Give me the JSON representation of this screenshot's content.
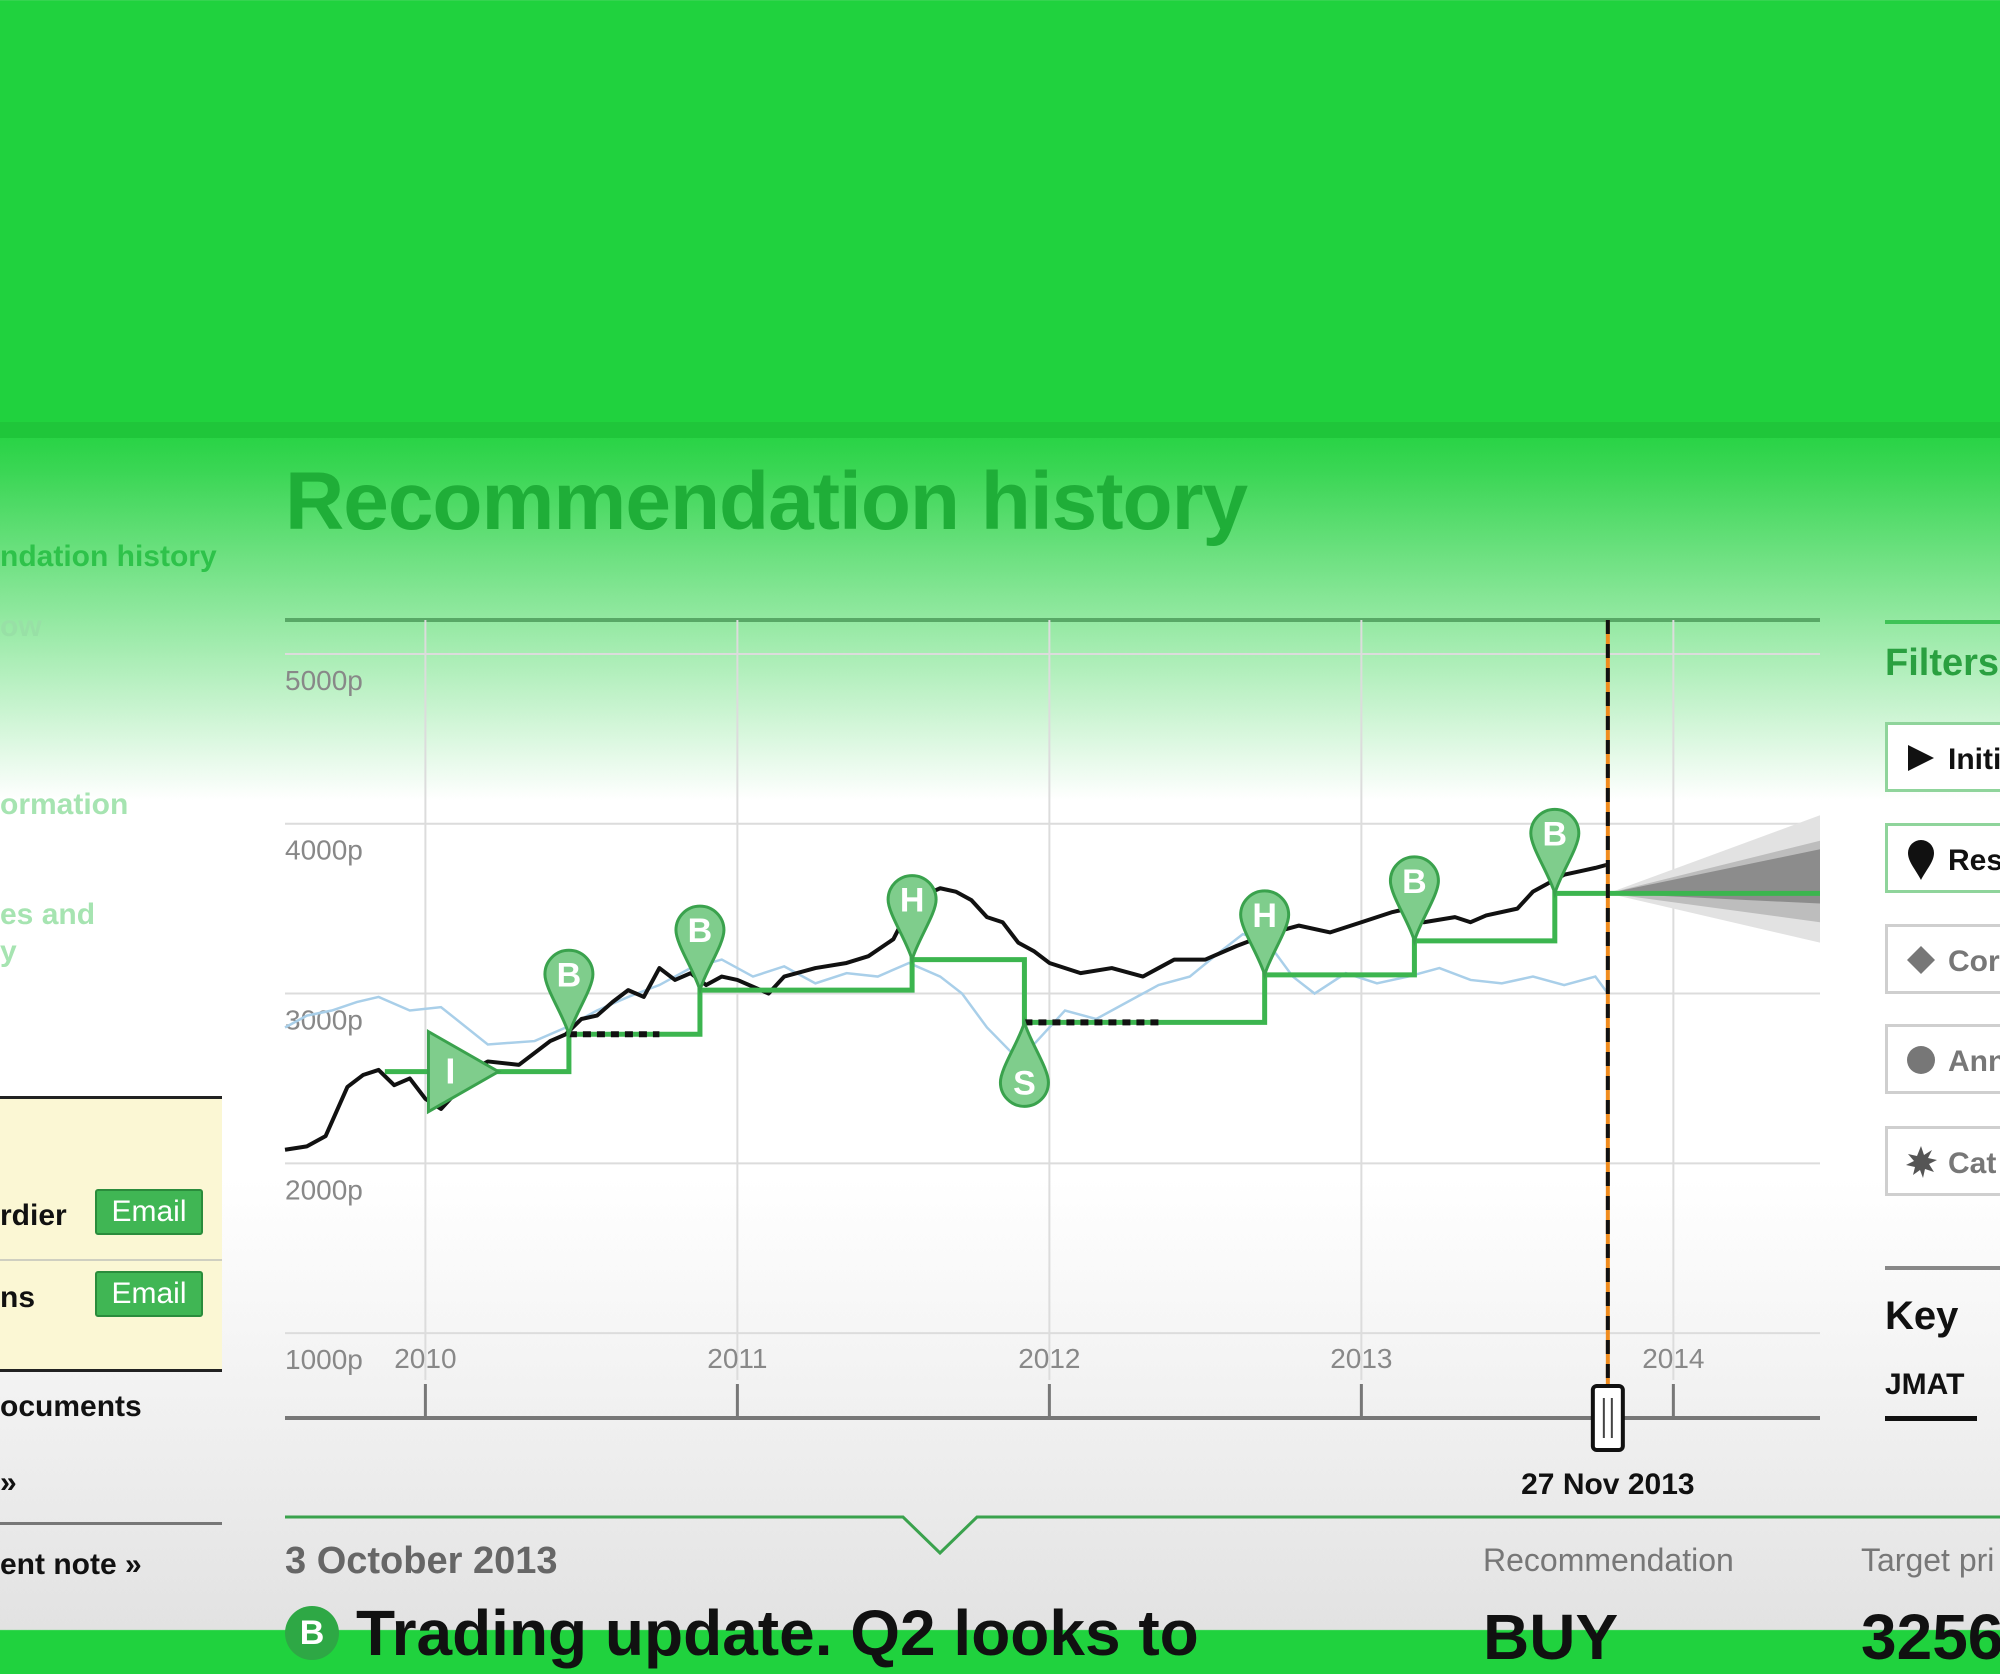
{
  "page": {
    "title": "Recommendation history"
  },
  "side_nav": {
    "items": [
      {
        "label": "ndation history",
        "active": true
      },
      {
        "label": "ow",
        "active": false
      },
      {
        "label": "ormation",
        "active": false
      },
      {
        "label": "es and",
        "active": false
      },
      {
        "label": "y",
        "active": false
      }
    ]
  },
  "contacts": {
    "rows": [
      {
        "name": "rdier",
        "email_label": "Email"
      },
      {
        "name": "ns",
        "email_label": "Email"
      }
    ]
  },
  "side_links": [
    "ocuments",
    "»",
    "ent note »"
  ],
  "filters": {
    "title": "Filters",
    "items": [
      {
        "label": "Initi",
        "icon": "play-triangle-icon",
        "active": true
      },
      {
        "label": "Res",
        "icon": "map-pin-icon",
        "active": true
      },
      {
        "label": "Cor",
        "icon": "diamond-icon",
        "active": false
      },
      {
        "label": "Ann",
        "icon": "circle-icon",
        "active": false
      },
      {
        "label": "Cat",
        "icon": "starburst-icon",
        "active": false
      }
    ]
  },
  "key": {
    "title": "Key",
    "items": [
      "JMAT"
    ]
  },
  "timeline": {
    "selected_date": "27 Nov 2013"
  },
  "detail": {
    "date": "3 October 2013",
    "headline": "Trading update. Q2 looks to",
    "badge": "B",
    "recommendation_label": "Recommendation",
    "recommendation_value": "BUY",
    "target_price_label": "Target pri",
    "target_price_value": "3256"
  },
  "colors": {
    "brand_green": "#20d23e",
    "recommendation_line": "#3cb54f",
    "price_line": "#111111",
    "index_line": "#a9cfe9",
    "selected_marker": "#f08c1e"
  },
  "chart_data": {
    "type": "line",
    "title": "",
    "xlabel": "",
    "ylabel": "",
    "y_tick_labels": [
      "1000p",
      "2000p",
      "3000p",
      "4000p",
      "5000p"
    ],
    "x_tick_labels": [
      "2010",
      "2011",
      "2012",
      "2013",
      "2014"
    ],
    "xlim": [
      2009.55,
      2014.47
    ],
    "ylim": [
      500,
      5200
    ],
    "grid": true,
    "selected_x": 2013.79,
    "series": [
      {
        "name": "",
        "kind": "share_price",
        "x": [
          2009.55,
          2009.62,
          2009.68,
          2009.75,
          2009.8,
          2009.85,
          2009.9,
          2009.95,
          2010.0,
          2010.05,
          2010.1,
          2010.15,
          2010.2,
          2010.3,
          2010.4,
          2010.45,
          2010.5,
          2010.55,
          2010.6,
          2010.65,
          2010.7,
          2010.75,
          2010.8,
          2010.85,
          2010.9,
          2010.95,
          2011.0,
          2011.1,
          2011.15,
          2011.25,
          2011.35,
          2011.42,
          2011.5,
          2011.55,
          2011.6,
          2011.65,
          2011.7,
          2011.75,
          2011.8,
          2011.85,
          2011.9,
          2011.95,
          2012.0,
          2012.1,
          2012.2,
          2012.3,
          2012.35,
          2012.4,
          2012.5,
          2012.6,
          2012.7,
          2012.8,
          2012.9,
          2013.0,
          2013.05,
          2013.1,
          2013.15,
          2013.2,
          2013.3,
          2013.35,
          2013.4,
          2013.5,
          2013.55,
          2013.6,
          2013.65,
          2013.7,
          2013.75,
          2013.79
        ],
        "values": [
          2080,
          2100,
          2160,
          2450,
          2520,
          2550,
          2460,
          2500,
          2380,
          2320,
          2420,
          2550,
          2600,
          2580,
          2720,
          2760,
          2850,
          2870,
          2950,
          3020,
          2980,
          3150,
          3080,
          3120,
          3050,
          3100,
          3080,
          3000,
          3100,
          3150,
          3180,
          3220,
          3320,
          3500,
          3580,
          3620,
          3600,
          3550,
          3450,
          3420,
          3300,
          3250,
          3180,
          3120,
          3150,
          3100,
          3150,
          3200,
          3200,
          3280,
          3350,
          3400,
          3360,
          3420,
          3450,
          3480,
          3500,
          3420,
          3450,
          3420,
          3460,
          3500,
          3600,
          3650,
          3700,
          3720,
          3740,
          3760
        ]
      },
      {
        "name": "",
        "kind": "relative_index",
        "x": [
          2009.55,
          2009.62,
          2009.7,
          2009.78,
          2009.85,
          2009.95,
          2010.05,
          2010.2,
          2010.35,
          2010.45,
          2010.55,
          2010.65,
          2010.75,
          2010.85,
          2010.95,
          2011.05,
          2011.15,
          2011.25,
          2011.35,
          2011.45,
          2011.55,
          2011.65,
          2011.72,
          2011.8,
          2011.88,
          2011.95,
          2012.05,
          2012.15,
          2012.25,
          2012.35,
          2012.45,
          2012.55,
          2012.62,
          2012.7,
          2012.78,
          2012.85,
          2012.95,
          2013.05,
          2013.15,
          2013.25,
          2013.35,
          2013.45,
          2013.55,
          2013.65,
          2013.75,
          2013.79
        ],
        "values": [
          2800,
          2870,
          2900,
          2950,
          2980,
          2900,
          2920,
          2700,
          2720,
          2800,
          2900,
          2980,
          3050,
          3150,
          3200,
          3100,
          3160,
          3060,
          3120,
          3100,
          3180,
          3100,
          3000,
          2800,
          2650,
          2700,
          2900,
          2850,
          2950,
          3050,
          3100,
          3250,
          3350,
          3300,
          3100,
          3000,
          3120,
          3060,
          3100,
          3150,
          3080,
          3060,
          3100,
          3050,
          3100,
          3000
        ]
      },
      {
        "name": "",
        "kind": "target_price",
        "steps": [
          {
            "from": 2009.87,
            "to": 2010.46,
            "value": 2540
          },
          {
            "from": 2010.46,
            "to": 2010.88,
            "value": 2760
          },
          {
            "from": 2010.88,
            "to": 2011.56,
            "value": 3020
          },
          {
            "from": 2011.56,
            "to": 2011.92,
            "value": 3200
          },
          {
            "from": 2011.92,
            "to": 2012.69,
            "value": 2830
          },
          {
            "from": 2012.69,
            "to": 2013.17,
            "value": 3110
          },
          {
            "from": 2013.17,
            "to": 2013.62,
            "value": 3310
          },
          {
            "from": 2013.62,
            "to": 2014.47,
            "value": 3590
          }
        ],
        "dashed_segments": [
          {
            "from": 2010.46,
            "to": 2010.75,
            "value": 2760
          },
          {
            "from": 2011.92,
            "to": 2012.35,
            "value": 2830
          }
        ]
      }
    ],
    "markers": [
      {
        "x": 2010.17,
        "value": 2540,
        "label": "I",
        "type": "initiation"
      },
      {
        "x": 2010.46,
        "value": 2760,
        "label": "B",
        "type": "recommendation"
      },
      {
        "x": 2010.88,
        "value": 3020,
        "label": "B",
        "type": "recommendation"
      },
      {
        "x": 2011.56,
        "value": 3200,
        "label": "H",
        "type": "recommendation"
      },
      {
        "x": 2011.92,
        "value": 2830,
        "label": "S",
        "type": "recommendation"
      },
      {
        "x": 2012.69,
        "value": 3110,
        "label": "H",
        "type": "recommendation"
      },
      {
        "x": 2013.17,
        "value": 3310,
        "label": "B",
        "type": "recommendation"
      },
      {
        "x": 2013.62,
        "value": 3590,
        "label": "B",
        "type": "recommendation"
      }
    ],
    "forecast_fan": {
      "from": 2013.79,
      "to": 2014.47,
      "low": 3300,
      "high": 4050,
      "center": 3590
    }
  }
}
